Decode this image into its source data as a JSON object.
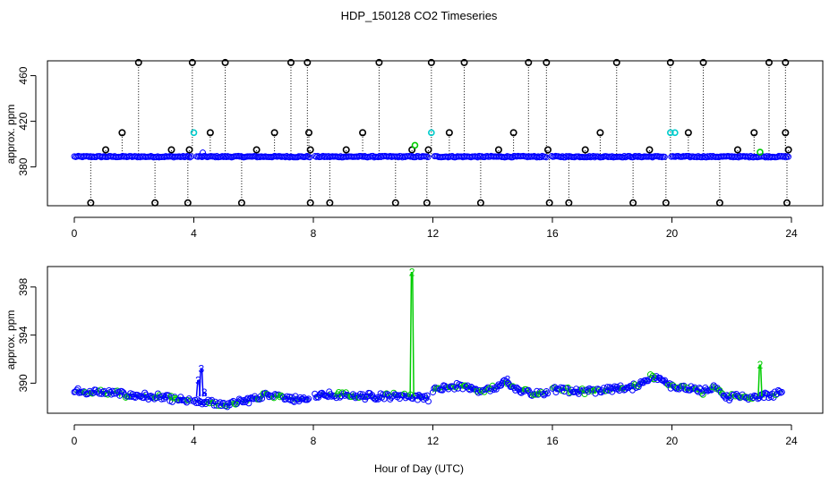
{
  "figure": {
    "title": "HDP_150128  CO2 Timeseries",
    "xlabel": "Hour of Day (UTC)"
  },
  "colors": {
    "axis": "#000000",
    "black_series": "#000000",
    "blue_series": "#0000ff",
    "green_series": "#00cc00",
    "cyan_series": "#00cccc"
  },
  "chart_data": [
    {
      "type": "scatter",
      "title": "",
      "xlabel": "",
      "ylabel": "approx. ppm",
      "xlim": [
        0,
        24
      ],
      "ylim": [
        346,
        473
      ],
      "xticks": [
        0,
        4,
        8,
        12,
        16,
        20,
        24
      ],
      "yticks": [
        380,
        420,
        460
      ],
      "baseline": 389,
      "blue_gaps": [
        [
          3.95,
          4.05
        ],
        [
          7.9,
          8.05
        ],
        [
          11.85,
          12.05
        ],
        [
          15.8,
          15.95
        ],
        [
          19.8,
          19.95
        ]
      ],
      "spikes_high": [
        2.15,
        3.95,
        5.05,
        7.25,
        7.8,
        10.2,
        11.95,
        13.05,
        15.2,
        15.8,
        18.15,
        19.95,
        21.05,
        23.25,
        23.8
      ],
      "spikes_low": [
        0.55,
        2.7,
        3.8,
        5.6,
        7.9,
        8.55,
        10.75,
        11.8,
        13.6,
        15.9,
        16.55,
        18.7,
        19.8,
        21.6,
        23.85
      ],
      "spikes_mid": [
        [
          1.6,
          410
        ],
        [
          4.55,
          410
        ],
        [
          6.7,
          410
        ],
        [
          7.85,
          410
        ],
        [
          9.65,
          410
        ],
        [
          12.55,
          410
        ],
        [
          14.7,
          410
        ],
        [
          17.6,
          410
        ],
        [
          20.55,
          410
        ],
        [
          22.75,
          410
        ],
        [
          23.8,
          410
        ],
        [
          1.05,
          395
        ],
        [
          3.25,
          395
        ],
        [
          3.85,
          395
        ],
        [
          6.1,
          395
        ],
        [
          7.9,
          395
        ],
        [
          9.1,
          395
        ],
        [
          11.3,
          395
        ],
        [
          11.85,
          395
        ],
        [
          14.2,
          395
        ],
        [
          15.85,
          395
        ],
        [
          17.1,
          395
        ],
        [
          19.25,
          395
        ],
        [
          22.2,
          395
        ],
        [
          23.9,
          395
        ]
      ],
      "cyan_points": [
        [
          4.0,
          410
        ],
        [
          11.95,
          410
        ],
        [
          19.95,
          410
        ],
        [
          20.1,
          410
        ]
      ],
      "green_points": [
        [
          11.4,
          399
        ],
        [
          22.95,
          393
        ]
      ]
    },
    {
      "type": "scatter",
      "title": "",
      "xlabel": "Hour of Day (UTC)",
      "ylabel": "approx. ppm",
      "xlim": [
        0,
        24
      ],
      "ylim": [
        387.5,
        399.7
      ],
      "xticks": [
        0,
        4,
        8,
        12,
        16,
        20,
        24
      ],
      "yticks": [
        390,
        394,
        398
      ],
      "gaps": [
        [
          3.95,
          4.05
        ],
        [
          7.85,
          8.05
        ],
        [
          11.85,
          12.05
        ],
        [
          15.85,
          16.0
        ]
      ],
      "segments": [
        {
          "x": [
            0.0,
            1.0,
            2.0,
            3.0,
            3.9
          ],
          "y": [
            389.3,
            389.2,
            389.0,
            388.8,
            388.5
          ]
        },
        {
          "x": [
            4.0,
            4.5,
            5.0,
            5.5,
            6.0,
            6.5,
            7.0,
            7.5,
            7.85
          ],
          "y": [
            388.5,
            388.4,
            388.2,
            388.4,
            388.7,
            389.1,
            388.9,
            388.6,
            388.5
          ]
        },
        {
          "x": [
            8.05,
            9.0,
            10.0,
            11.0,
            11.5,
            11.85
          ],
          "y": [
            389.0,
            389.0,
            388.9,
            389.0,
            388.9,
            388.8
          ]
        },
        {
          "x": [
            12.0,
            12.5,
            13.0,
            13.5,
            14.0,
            14.4,
            15.0,
            15.5,
            15.85
          ],
          "y": [
            389.4,
            389.6,
            389.8,
            389.4,
            389.5,
            390.0,
            389.3,
            389.2,
            389.2
          ]
        },
        {
          "x": [
            16.0,
            17.0,
            18.0,
            18.7,
            19.3,
            19.7,
            20.0,
            20.5,
            21.0,
            21.5,
            21.8,
            22.2,
            22.5,
            23.0,
            23.7
          ],
          "y": [
            389.5,
            389.3,
            389.5,
            389.7,
            390.5,
            390.3,
            389.8,
            389.5,
            389.3,
            389.6,
            388.8,
            389.0,
            388.7,
            388.9,
            389.2
          ]
        }
      ],
      "green_spikes": [
        {
          "label": "2",
          "x": 11.3,
          "peak": 399.2
        },
        {
          "label": "2",
          "x": 22.95,
          "peak": 391.5
        }
      ],
      "blue_spikes": [
        {
          "label": "3",
          "x": 4.25,
          "peak": 391.2
        },
        {
          "label": "3",
          "x": 4.15,
          "peak": 390.2
        },
        {
          "label": "3",
          "x": 4.35,
          "peak": 389.2
        }
      ],
      "markers": {
        "green_x": [
          19.4
        ],
        "label_2_x": [
          19.4
        ],
        "label_2_y": [
          390.4
        ],
        "blue_3_x": [
          14.5
        ],
        "blue_3_y": [
          390.3
        ]
      }
    }
  ]
}
